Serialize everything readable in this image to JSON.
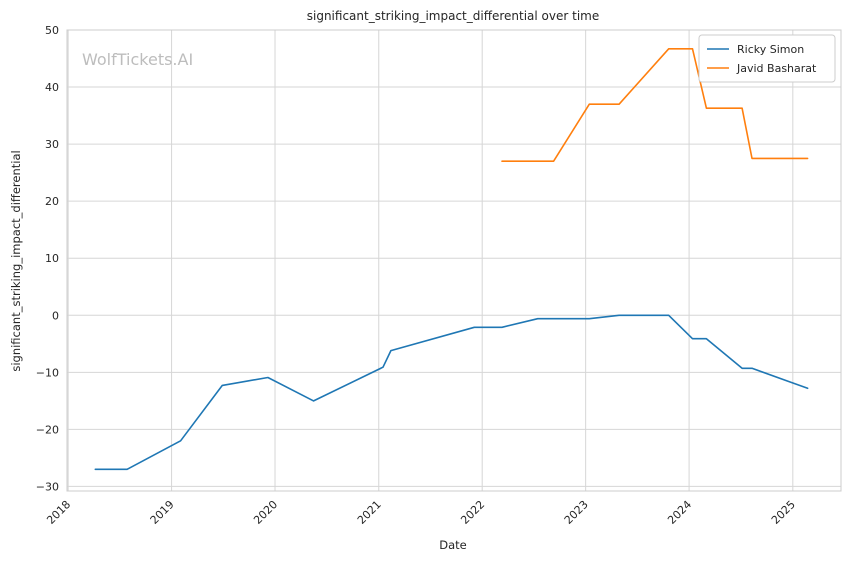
{
  "chart_data": {
    "type": "line",
    "title": "significant_striking_impact_differential over time",
    "xlabel": "Date",
    "ylabel": "significant_striking_impact_differential",
    "watermark": "WolfTickets.AI",
    "x_ticks": [
      "2018",
      "2019",
      "2020",
      "2021",
      "2022",
      "2023",
      "2024",
      "2025"
    ],
    "y_ticks": [
      "−30",
      "−20",
      "−10",
      "0",
      "10",
      "20",
      "30",
      "40",
      "50"
    ],
    "xlim": [
      "2017-12-28",
      "2025-06-20"
    ],
    "ylim": [
      -30.8,
      50
    ],
    "grid": true,
    "legend_position": "top-right",
    "series": [
      {
        "name": "Ricky Simon",
        "color": "#1f77b4",
        "points": [
          [
            "2018-04-07",
            -27.0
          ],
          [
            "2018-07-28",
            -27.0
          ],
          [
            "2019-02-02",
            -22.0
          ],
          [
            "2019-06-29",
            -12.3
          ],
          [
            "2019-12-07",
            -10.9
          ],
          [
            "2020-05-16",
            -15.0
          ],
          [
            "2021-01-16",
            -9.1
          ],
          [
            "2021-02-13",
            -6.2
          ],
          [
            "2021-12-04",
            -2.1
          ],
          [
            "2022-03-12",
            -2.1
          ],
          [
            "2022-07-16",
            -0.6
          ],
          [
            "2023-01-14",
            -0.6
          ],
          [
            "2023-04-29",
            0.0
          ],
          [
            "2023-10-21",
            0.0
          ],
          [
            "2024-01-13",
            -4.1
          ],
          [
            "2024-03-02",
            -4.1
          ],
          [
            "2024-07-06",
            -9.3
          ],
          [
            "2024-08-10",
            -9.3
          ],
          [
            "2025-02-22",
            -12.8
          ]
        ]
      },
      {
        "name": "Javid Basharat",
        "color": "#ff7f0e",
        "points": [
          [
            "2022-03-12",
            27.0
          ],
          [
            "2022-09-10",
            27.0
          ],
          [
            "2023-01-14",
            37.0
          ],
          [
            "2023-04-29",
            37.0
          ],
          [
            "2023-10-21",
            46.7
          ],
          [
            "2024-01-13",
            46.7
          ],
          [
            "2024-03-02",
            36.3
          ],
          [
            "2024-07-06",
            36.3
          ],
          [
            "2024-08-10",
            27.5
          ],
          [
            "2025-02-22",
            27.5
          ]
        ]
      }
    ]
  }
}
